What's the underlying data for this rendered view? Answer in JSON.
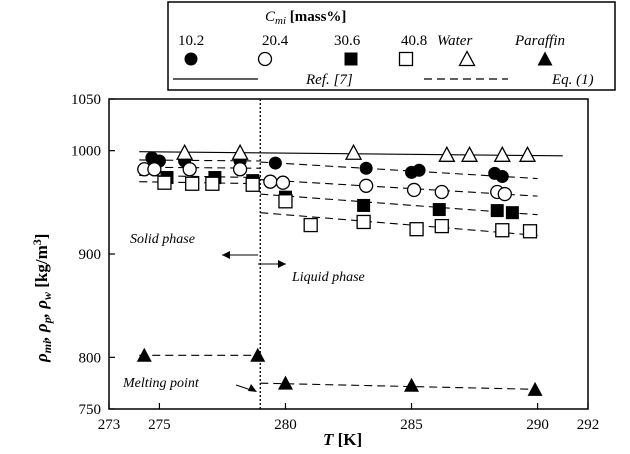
{
  "chart_data": {
    "type": "scatter",
    "xlabel": "T [K]",
    "ylabel": "ρmi, ρp, ρw [kg/m3]",
    "ylabel_parts": [
      "ρ",
      "mi",
      ", ρ",
      "p",
      ", ρ",
      "w",
      " [kg/m",
      "3",
      "]"
    ],
    "xlabel_parts": [
      "T",
      " [K]"
    ],
    "xlim": [
      273,
      292
    ],
    "ylim": [
      750,
      1050
    ],
    "x_ticks": [
      273,
      275,
      280,
      285,
      290,
      292
    ],
    "y_ticks": [
      750,
      800,
      900,
      1000,
      1050
    ],
    "grid": false,
    "legend": {
      "placement": "top-center",
      "title_symbol": "C",
      "title_sub": "mi",
      "title_unit": " [mass%]",
      "ref_label": "Ref. [7]",
      "eq_label": "Eq. (1)"
    },
    "series": [
      {
        "name": "10.2",
        "marker": "filled-circle",
        "x": [
          274.7,
          275.0,
          276.0,
          278.2,
          279.6,
          283.2,
          285.0,
          285.3,
          288.3,
          288.6
        ],
        "y": [
          993,
          990,
          990,
          990,
          988,
          983,
          979,
          981,
          978,
          975
        ]
      },
      {
        "name": "20.4",
        "marker": "open-circle",
        "x": [
          274.4,
          274.8,
          276.2,
          278.2,
          279.4,
          279.9,
          283.2,
          285.1,
          286.2,
          288.4,
          288.7
        ],
        "y": [
          982,
          982,
          982,
          982,
          970,
          969,
          966,
          962,
          960,
          960,
          958
        ]
      },
      {
        "name": "30.6",
        "marker": "filled-square",
        "x": [
          275.3,
          277.2,
          278.7,
          280.0,
          283.1,
          286.1,
          288.4,
          289.0
        ],
        "y": [
          974,
          974,
          971,
          955,
          947,
          943,
          942,
          940
        ]
      },
      {
        "name": "40.8",
        "marker": "open-square",
        "x": [
          275.2,
          276.3,
          277.1,
          278.7,
          280.0,
          281.0,
          283.1,
          285.2,
          286.2,
          288.6,
          289.7
        ],
        "y": [
          969,
          968,
          968,
          967,
          951,
          928,
          931,
          924,
          927,
          923,
          922
        ]
      },
      {
        "name": "Water",
        "marker": "open-triangle",
        "x": [
          276.0,
          278.2,
          282.7,
          286.4,
          287.3,
          288.6,
          289.6
        ],
        "y": [
          998,
          998,
          998,
          996,
          996,
          996,
          996
        ]
      },
      {
        "name": "Paraffin",
        "marker": "filled-triangle",
        "x": [
          274.4,
          278.9,
          280.0,
          285.0,
          289.9
        ],
        "y": [
          802,
          802,
          775,
          773,
          769
        ]
      }
    ],
    "ref_lines": [
      {
        "style": "solid",
        "label": "Ref. [7]",
        "x": [
          274.2,
          291.0
        ],
        "y": [
          999,
          995
        ]
      }
    ],
    "eq_lines": [
      {
        "style": "dashed",
        "x": [
          274.2,
          279.0
        ],
        "y": [
          991,
          990
        ]
      },
      {
        "style": "dashed",
        "x": [
          279.0,
          290.0
        ],
        "y": [
          989,
          973
        ]
      },
      {
        "style": "dashed",
        "x": [
          274.2,
          279.0
        ],
        "y": [
          984,
          983
        ]
      },
      {
        "style": "dashed",
        "x": [
          279.0,
          290.0
        ],
        "y": [
          972,
          956
        ]
      },
      {
        "style": "dashed",
        "x": [
          274.2,
          279.0
        ],
        "y": [
          976,
          974
        ]
      },
      {
        "style": "dashed",
        "x": [
          279.0,
          290.0
        ],
        "y": [
          958,
          938
        ]
      },
      {
        "style": "dashed",
        "x": [
          274.2,
          279.0
        ],
        "y": [
          970,
          968
        ]
      },
      {
        "style": "dashed",
        "x": [
          279.0,
          290.0
        ],
        "y": [
          940,
          918
        ]
      },
      {
        "style": "dashed",
        "x": [
          274.2,
          279.0
        ],
        "y": [
          802,
          802
        ]
      },
      {
        "style": "dashed",
        "x": [
          279.0,
          290.0
        ],
        "y": [
          775,
          769
        ]
      }
    ],
    "melting_point_x": 279,
    "annotations": {
      "solid_phase": "Solid phase",
      "liquid_phase": "Liquid phase",
      "melting_point": "Melting point"
    }
  }
}
